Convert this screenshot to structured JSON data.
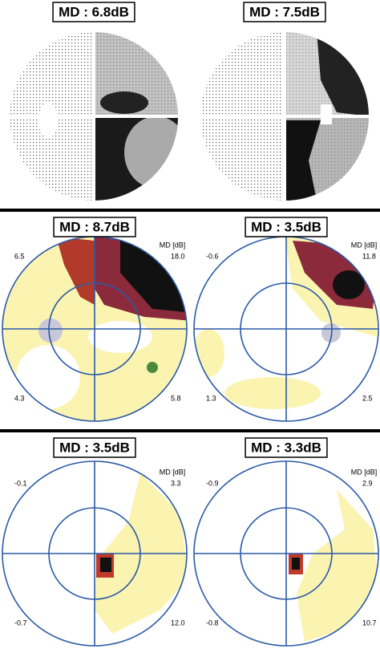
{
  "panels": [
    {
      "md_label": "MD : 6.8dB"
    },
    {
      "md_label": "MD : 7.5dB"
    },
    {
      "md_label": "MD : 8.7dB",
      "top_left": "6.5",
      "unit": "MD [dB]",
      "top_right": "18.0",
      "bottom_left": "4.3",
      "bottom_right": "5.8"
    },
    {
      "md_label": "MD : 3.5dB",
      "top_left": "-0.6",
      "unit": "MD [dB]",
      "top_right": "11.8",
      "bottom_left": "1.3",
      "bottom_right": "2.5"
    },
    {
      "md_label": "MD : 3.5dB",
      "top_left": "-0.1",
      "unit": "MD [dB]",
      "top_right": "3.3",
      "bottom_left": "-0.7",
      "bottom_right": "12.0"
    },
    {
      "md_label": "MD : 3.3dB",
      "top_left": "-0.9",
      "unit": "MD [dB]",
      "top_right": "2.9",
      "bottom_left": "-0.8",
      "bottom_right": "10.7"
    }
  ]
}
